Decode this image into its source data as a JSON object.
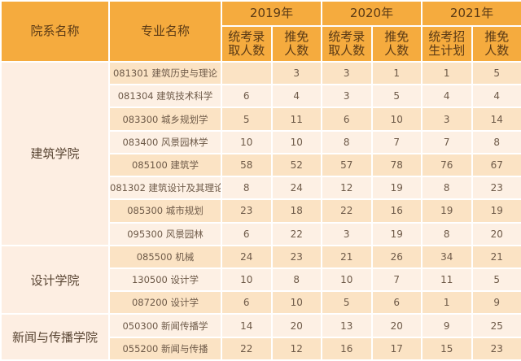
{
  "table": {
    "headers": {
      "college": "院系名称",
      "major": "专业名称",
      "years": [
        {
          "label": "2019年",
          "cols": [
            "统考录\n取人数",
            "推免\n人数"
          ]
        },
        {
          "label": "2020年",
          "cols": [
            "统考录\n取人数",
            "推免\n人数"
          ]
        },
        {
          "label": "2021年",
          "cols": [
            "统考招\n生计划",
            "推免\n人数"
          ]
        }
      ]
    },
    "groups": [
      {
        "college": "建筑学院",
        "rows": [
          {
            "major": "081301 建筑历史与理论",
            "values": [
              "",
              "3",
              "3",
              "1",
              "1",
              "5"
            ]
          },
          {
            "major": "081304 建筑技术科学",
            "values": [
              "6",
              "4",
              "3",
              "5",
              "4",
              "4"
            ]
          },
          {
            "major": "083300 城乡规划学",
            "values": [
              "5",
              "11",
              "6",
              "10",
              "3",
              "14"
            ]
          },
          {
            "major": "083400 风景园林学",
            "values": [
              "10",
              "10",
              "8",
              "7",
              "7",
              "8"
            ]
          },
          {
            "major": "085100 建筑学",
            "values": [
              "58",
              "52",
              "57",
              "78",
              "76",
              "67"
            ]
          },
          {
            "major": "081302 建筑设计及其理论",
            "values": [
              "8",
              "24",
              "12",
              "19",
              "8",
              "23"
            ]
          },
          {
            "major": "085300 城市规划",
            "values": [
              "23",
              "18",
              "22",
              "16",
              "19",
              "19"
            ]
          },
          {
            "major": "095300 风景园林",
            "values": [
              "6",
              "22",
              "3",
              "19",
              "8",
              "20"
            ]
          }
        ]
      },
      {
        "college": "设计学院",
        "rows": [
          {
            "major": "085500 机械",
            "values": [
              "24",
              "23",
              "21",
              "26",
              "34",
              "21"
            ]
          },
          {
            "major": "130500 设计学",
            "values": [
              "10",
              "8",
              "10",
              "7",
              "11",
              "5"
            ]
          },
          {
            "major": "087200 设计学",
            "values": [
              "6",
              "10",
              "5",
              "6",
              "1",
              "9"
            ]
          }
        ]
      },
      {
        "college": "新闻与传播学院",
        "rows": [
          {
            "major": "050300 新闻传播学",
            "values": [
              "14",
              "20",
              "13",
              "20",
              "9",
              "25"
            ]
          },
          {
            "major": "055200 新闻与传播",
            "values": [
              "22",
              "12",
              "16",
              "17",
              "15",
              "23"
            ]
          }
        ]
      }
    ]
  },
  "colors": {
    "header_bg": "#f5ab3e",
    "row_odd_bg": "#fbe3c4",
    "row_even_bg": "#fdf0e4",
    "college_bg": "#fdeee2",
    "text": "#6e5a48"
  }
}
